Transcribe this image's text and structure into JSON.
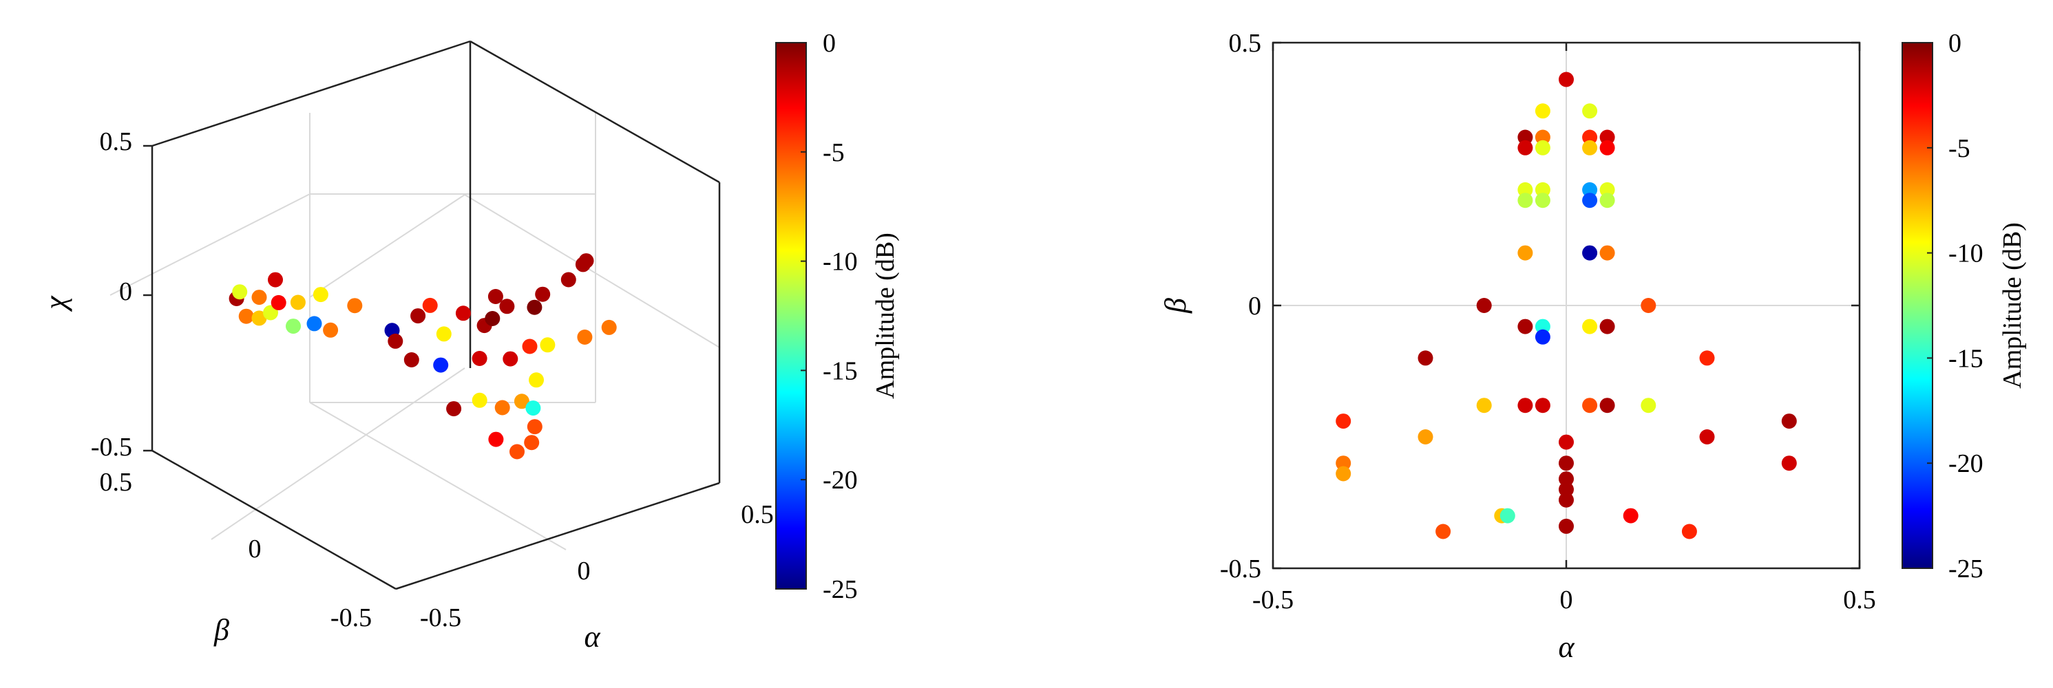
{
  "chart_data": [
    {
      "type": "scatter3d",
      "xlabel": "α",
      "ylabel": "β",
      "zlabel": "χ",
      "xlim": [
        -0.5,
        0.5
      ],
      "ylim": [
        -0.5,
        0.5
      ],
      "zlim": [
        -0.5,
        0.5
      ],
      "xticks": [
        "-0.5",
        "0",
        "0.5"
      ],
      "yticks": [
        "-0.5",
        "0",
        "0.5"
      ],
      "zticks": [
        "-0.5",
        "0",
        "0.5"
      ],
      "grid": true,
      "colorbar": {
        "label": "Amplitude (dB)",
        "ticks": [
          "0",
          "-5",
          "-10",
          "-15",
          "-20",
          "-25"
        ],
        "range": [
          -25,
          0
        ],
        "colormap": "jet"
      },
      "points": [
        {
          "x": -0.42,
          "y": 0.26,
          "z": 0.08,
          "c": -1
        },
        {
          "x": -0.42,
          "y": 0.22,
          "z": 0.04,
          "c": -6
        },
        {
          "x": -0.38,
          "y": 0.22,
          "z": 0.02,
          "c": -8
        },
        {
          "x": -0.36,
          "y": 0.2,
          "z": 0.04,
          "c": -10
        },
        {
          "x": -0.35,
          "y": 0.26,
          "z": 0.06,
          "c": -6
        },
        {
          "x": -0.38,
          "y": 0.3,
          "z": 0.07,
          "c": -10
        },
        {
          "x": -0.32,
          "y": 0.22,
          "z": 0.05,
          "c": -3
        },
        {
          "x": -0.3,
          "y": 0.26,
          "z": 0.1,
          "c": -2
        },
        {
          "x": -0.32,
          "y": 0.16,
          "z": 0.0,
          "c": -12
        },
        {
          "x": -0.26,
          "y": 0.22,
          "z": 0.03,
          "c": -8
        },
        {
          "x": -0.27,
          "y": 0.14,
          "z": 0.0,
          "c": -19
        },
        {
          "x": -0.22,
          "y": 0.18,
          "z": 0.06,
          "c": -9
        },
        {
          "x": -0.25,
          "y": 0.1,
          "z": -0.01,
          "c": -6
        },
        {
          "x": -0.16,
          "y": 0.12,
          "z": 0.03,
          "c": -6
        },
        {
          "x": -0.12,
          "y": 0.02,
          "z": -0.02,
          "c": -24
        },
        {
          "x": -0.14,
          "y": -0.02,
          "z": -0.03,
          "c": -1
        },
        {
          "x": -0.04,
          "y": 0.02,
          "z": 0.0,
          "c": -1
        },
        {
          "x": 0.02,
          "y": 0.05,
          "z": 0.0,
          "c": -4
        },
        {
          "x": -0.02,
          "y": -0.06,
          "z": -0.03,
          "c": -9
        },
        {
          "x": 0.1,
          "y": 0.02,
          "z": -0.04,
          "c": -2
        },
        {
          "x": 0.12,
          "y": -0.04,
          "z": -0.06,
          "c": -1
        },
        {
          "x": 0.16,
          "y": -0.02,
          "z": -0.06,
          "c": 0
        },
        {
          "x": 0.22,
          "y": 0.0,
          "z": -0.05,
          "c": -1
        },
        {
          "x": 0.26,
          "y": -0.06,
          "z": -0.04,
          "c": 0
        },
        {
          "x": 0.3,
          "y": -0.04,
          "z": -0.02,
          "c": -1
        },
        {
          "x": 0.2,
          "y": 0.02,
          "z": -0.02,
          "c": -1
        },
        {
          "x": 0.38,
          "y": -0.04,
          "z": 0.0,
          "c": -1
        },
        {
          "x": 0.44,
          "y": -0.02,
          "z": 0.02,
          "c": -1
        },
        {
          "x": 0.48,
          "y": 0.02,
          "z": 0.0,
          "c": -1
        },
        {
          "x": -0.12,
          "y": -0.06,
          "z": -0.08,
          "c": -1
        },
        {
          "x": -0.06,
          "y": -0.1,
          "z": -0.1,
          "c": -21
        },
        {
          "x": 0.06,
          "y": -0.1,
          "z": -0.12,
          "c": -2
        },
        {
          "x": 0.14,
          "y": -0.12,
          "z": -0.14,
          "c": -2
        },
        {
          "x": 0.2,
          "y": -0.12,
          "z": -0.12,
          "c": -4
        },
        {
          "x": 0.24,
          "y": -0.14,
          "z": -0.12,
          "c": -9
        },
        {
          "x": 0.34,
          "y": -0.16,
          "z": -0.12,
          "c": -6
        },
        {
          "x": 0.4,
          "y": -0.18,
          "z": -0.1,
          "c": -6
        },
        {
          "x": -0.08,
          "y": -0.18,
          "z": -0.2,
          "c": -1
        },
        {
          "x": 0.0,
          "y": -0.18,
          "z": -0.2,
          "c": -9
        },
        {
          "x": 0.04,
          "y": -0.22,
          "z": -0.22,
          "c": -6
        },
        {
          "x": 0.1,
          "y": -0.22,
          "z": -0.22,
          "c": -7
        },
        {
          "x": 0.16,
          "y": -0.2,
          "z": -0.18,
          "c": -9
        },
        {
          "x": 0.12,
          "y": -0.24,
          "z": -0.24,
          "c": -15
        },
        {
          "x": 0.08,
          "y": -0.3,
          "z": -0.26,
          "c": -5
        },
        {
          "x": -0.04,
          "y": -0.3,
          "z": -0.26,
          "c": -3
        },
        {
          "x": -0.02,
          "y": -0.36,
          "z": -0.28,
          "c": -5
        },
        {
          "x": 0.04,
          "y": -0.34,
          "z": -0.28,
          "c": -5
        }
      ]
    },
    {
      "type": "scatter",
      "xlabel": "α",
      "ylabel": "β",
      "xlim": [
        -0.5,
        0.5
      ],
      "ylim": [
        -0.5,
        0.5
      ],
      "xticks": [
        "-0.5",
        "0",
        "0.5"
      ],
      "yticks": [
        "-0.5",
        "0",
        "0.5"
      ],
      "zero_lines": true,
      "colorbar": {
        "label": "Amplitude (dB)",
        "ticks": [
          "0",
          "-5",
          "-10",
          "-15",
          "-20",
          "-25"
        ],
        "range": [
          -25,
          0
        ],
        "colormap": "jet"
      },
      "points": [
        {
          "x": 0.0,
          "y": 0.43,
          "c": -2
        },
        {
          "x": -0.04,
          "y": 0.37,
          "c": -9
        },
        {
          "x": 0.04,
          "y": 0.37,
          "c": -10
        },
        {
          "x": -0.07,
          "y": 0.32,
          "c": -1
        },
        {
          "x": -0.07,
          "y": 0.3,
          "c": -2
        },
        {
          "x": -0.04,
          "y": 0.32,
          "c": -6
        },
        {
          "x": -0.04,
          "y": 0.3,
          "c": -10
        },
        {
          "x": 0.04,
          "y": 0.32,
          "c": -4
        },
        {
          "x": 0.04,
          "y": 0.3,
          "c": -8
        },
        {
          "x": 0.07,
          "y": 0.32,
          "c": -2
        },
        {
          "x": 0.07,
          "y": 0.3,
          "c": -3
        },
        {
          "x": -0.07,
          "y": 0.22,
          "c": -10
        },
        {
          "x": -0.07,
          "y": 0.2,
          "c": -11
        },
        {
          "x": -0.04,
          "y": 0.22,
          "c": -10
        },
        {
          "x": -0.04,
          "y": 0.2,
          "c": -11
        },
        {
          "x": 0.04,
          "y": 0.22,
          "c": -18
        },
        {
          "x": 0.04,
          "y": 0.2,
          "c": -20
        },
        {
          "x": 0.07,
          "y": 0.22,
          "c": -10
        },
        {
          "x": 0.07,
          "y": 0.2,
          "c": -11
        },
        {
          "x": -0.07,
          "y": 0.1,
          "c": -7
        },
        {
          "x": 0.04,
          "y": 0.1,
          "c": -24
        },
        {
          "x": 0.07,
          "y": 0.1,
          "c": -6
        },
        {
          "x": -0.14,
          "y": 0.0,
          "c": -1
        },
        {
          "x": 0.14,
          "y": 0.0,
          "c": -5
        },
        {
          "x": -0.07,
          "y": -0.04,
          "c": -1
        },
        {
          "x": -0.04,
          "y": -0.04,
          "c": -15
        },
        {
          "x": -0.04,
          "y": -0.06,
          "c": -21
        },
        {
          "x": 0.04,
          "y": -0.04,
          "c": -9
        },
        {
          "x": 0.07,
          "y": -0.04,
          "c": -1
        },
        {
          "x": -0.24,
          "y": -0.1,
          "c": -1
        },
        {
          "x": 0.24,
          "y": -0.1,
          "c": -4
        },
        {
          "x": -0.38,
          "y": -0.22,
          "c": -4
        },
        {
          "x": -0.24,
          "y": -0.25,
          "c": -7
        },
        {
          "x": -0.14,
          "y": -0.19,
          "c": -8
        },
        {
          "x": -0.07,
          "y": -0.19,
          "c": -2
        },
        {
          "x": -0.04,
          "y": -0.19,
          "c": -2
        },
        {
          "x": 0.04,
          "y": -0.19,
          "c": -5
        },
        {
          "x": 0.07,
          "y": -0.19,
          "c": -1
        },
        {
          "x": 0.14,
          "y": -0.19,
          "c": -10
        },
        {
          "x": 0.24,
          "y": -0.25,
          "c": -2
        },
        {
          "x": 0.38,
          "y": -0.22,
          "c": -1
        },
        {
          "x": -0.38,
          "y": -0.3,
          "c": -6
        },
        {
          "x": -0.38,
          "y": -0.32,
          "c": -7
        },
        {
          "x": 0.38,
          "y": -0.3,
          "c": -2
        },
        {
          "x": 0.0,
          "y": -0.26,
          "c": -2
        },
        {
          "x": 0.0,
          "y": -0.3,
          "c": -1
        },
        {
          "x": 0.0,
          "y": -0.33,
          "c": -1
        },
        {
          "x": 0.0,
          "y": -0.35,
          "c": -1
        },
        {
          "x": 0.0,
          "y": -0.37,
          "c": -1
        },
        {
          "x": 0.0,
          "y": -0.42,
          "c": -1
        },
        {
          "x": -0.21,
          "y": -0.43,
          "c": -5
        },
        {
          "x": -0.11,
          "y": -0.4,
          "c": -8
        },
        {
          "x": -0.1,
          "y": -0.4,
          "c": -14
        },
        {
          "x": 0.11,
          "y": -0.4,
          "c": -3
        },
        {
          "x": 0.21,
          "y": -0.43,
          "c": -4
        }
      ]
    }
  ]
}
